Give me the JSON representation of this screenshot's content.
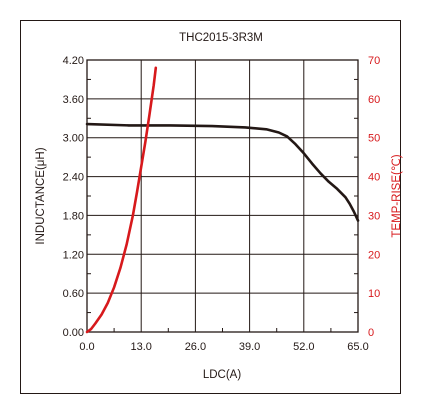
{
  "chart_data": {
    "type": "line",
    "title": "THC2015-3R3M",
    "xlabel": "LDC(A)",
    "ylabel_left": "INDUCTANCE(μH)",
    "ylabel_right": "TEMP-RISE(℃)",
    "x_ticks": [
      "0.0",
      "13.0",
      "26.0",
      "39.0",
      "52.0",
      "65.0"
    ],
    "x_tick_values": [
      0,
      13,
      26,
      39,
      52,
      65
    ],
    "y_left_ticks": [
      "0.00",
      "0.60",
      "1.20",
      "1.80",
      "2.40",
      "3.00",
      "3.60",
      "4.20"
    ],
    "y_left_tick_values": [
      0,
      0.6,
      1.2,
      1.8,
      2.4,
      3.0,
      3.6,
      4.2
    ],
    "y_right_ticks": [
      "0",
      "10",
      "20",
      "30",
      "40",
      "50",
      "60",
      "70"
    ],
    "y_right_tick_values": [
      0,
      10,
      20,
      30,
      40,
      50,
      60,
      70
    ],
    "xlim": [
      0,
      65
    ],
    "ylim_left": [
      0,
      4.2
    ],
    "ylim_right": [
      0,
      70
    ],
    "grid": true,
    "series": [
      {
        "axis": "left",
        "color": "#231815",
        "x": [
          0,
          10,
          20,
          30,
          38,
          43,
          46,
          48,
          50,
          52,
          54,
          56,
          58,
          60,
          62,
          63,
          64,
          65
        ],
        "y": [
          3.21,
          3.19,
          3.19,
          3.18,
          3.16,
          3.13,
          3.08,
          3.02,
          2.9,
          2.76,
          2.6,
          2.45,
          2.32,
          2.21,
          2.08,
          1.98,
          1.86,
          1.72
        ]
      },
      {
        "axis": "right",
        "color": "#d7191c",
        "x": [
          0,
          1,
          2,
          3.5,
          5,
          6.5,
          8,
          9.5,
          11,
          12,
          13,
          14,
          15,
          16,
          16.5
        ],
        "y": [
          0,
          0.8,
          2.2,
          4.5,
          7.5,
          11.5,
          16.5,
          22.5,
          30,
          36,
          42.5,
          49,
          56,
          63.5,
          68
        ]
      }
    ]
  }
}
